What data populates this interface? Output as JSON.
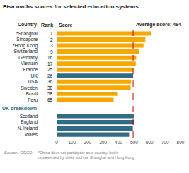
{
  "chart_data": {
    "type": "bar",
    "orientation": "horizontal",
    "title": "Pisa maths scores for selected education systems",
    "categories": [
      "*Shanghai",
      "Singapore",
      "*Hong Kong",
      "Switzerland",
      "Germany",
      "Vietnam",
      "France",
      "UK",
      "USA",
      "Sweden",
      "Brazil",
      "Peru",
      "Scotland",
      "England",
      "N. Ireland",
      "Wales"
    ],
    "values": [
      613,
      573,
      561,
      531,
      514,
      511,
      495,
      494,
      481,
      478,
      391,
      368,
      498,
      500,
      492,
      468
    ],
    "ranks": [
      1,
      2,
      3,
      9,
      16,
      17,
      25,
      26,
      36,
      38,
      58,
      65,
      null,
      null,
      null,
      null
    ],
    "colors": [
      "#F5A800",
      "#F5A800",
      "#F5A800",
      "#F5A800",
      "#F5A800",
      "#F5A800",
      "#F5A800",
      "#336B87",
      "#F5A800",
      "#F5A800",
      "#F5A800",
      "#F5A800",
      "#336B87",
      "#336B87",
      "#336B87",
      "#336B87"
    ],
    "average": {
      "value": 494,
      "label": "Average score: 494",
      "color": "#CC0000",
      "line_style": "dashed"
    },
    "annotations": [
      "Country",
      "Rank",
      "Score",
      "UK breakdown",
      "Source: OECD",
      "*China does not participate as a country, but is\nrepresented by cities such as Shanghai and Hong Kong"
    ],
    "xlim": [
      0,
      800
    ],
    "xticks": [
      0,
      100,
      200,
      300,
      400,
      500,
      600,
      700,
      800
    ],
    "grid": false
  }
}
